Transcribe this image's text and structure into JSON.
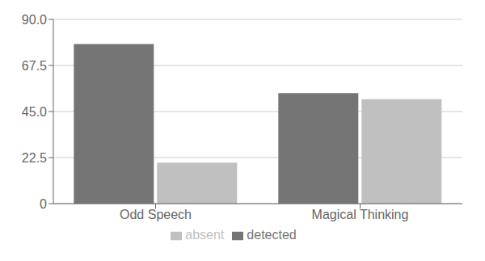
{
  "chart_data": {
    "type": "bar",
    "categories": [
      "Odd Speech",
      "Magical Thinking"
    ],
    "series": [
      {
        "name": "detected",
        "color": "#757575",
        "values": [
          78,
          54
        ]
      },
      {
        "name": "absent",
        "color": "#c0c0c0",
        "values": [
          20,
          51
        ]
      }
    ],
    "ylim": [
      0,
      90
    ],
    "yticks": [
      0,
      22.5,
      {
        "value": 45,
        "label": "45.0"
      },
      67.5,
      {
        "value": 90,
        "label": "90.0"
      }
    ],
    "grid": true,
    "legend": "bottom"
  }
}
